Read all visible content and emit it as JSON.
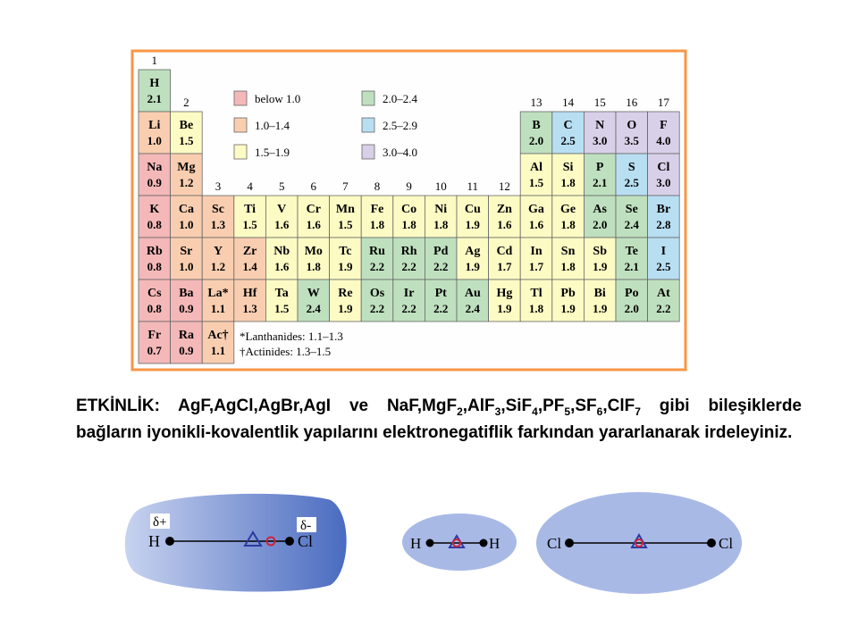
{
  "table": {
    "group_labels": [
      "1",
      "2",
      "3",
      "4",
      "5",
      "6",
      "7",
      "8",
      "9",
      "10",
      "11",
      "12",
      "13",
      "14",
      "15",
      "16",
      "17"
    ],
    "rows": [
      [
        {
          "symbol": "H",
          "value": "2.1",
          "color": "#bfe0bf"
        },
        null,
        null,
        null,
        null,
        null,
        null,
        null,
        null,
        null,
        null,
        null,
        null,
        null,
        null,
        null,
        null
      ],
      [
        {
          "symbol": "Li",
          "value": "1.0",
          "color": "#f9ceb0"
        },
        {
          "symbol": "Be",
          "value": "1.5",
          "color": "#fdfbc4"
        },
        null,
        null,
        null,
        null,
        null,
        null,
        null,
        null,
        null,
        null,
        {
          "symbol": "B",
          "value": "2.0",
          "color": "#bfe0bf"
        },
        {
          "symbol": "C",
          "value": "2.5",
          "color": "#b8def2"
        },
        {
          "symbol": "N",
          "value": "3.0",
          "color": "#d8d0e8"
        },
        {
          "symbol": "O",
          "value": "3.5",
          "color": "#d8d0e8"
        },
        {
          "symbol": "F",
          "value": "4.0",
          "color": "#d8d0e8"
        }
      ],
      [
        {
          "symbol": "Na",
          "value": "0.9",
          "color": "#f4b8b8"
        },
        {
          "symbol": "Mg",
          "value": "1.2",
          "color": "#f9ceb0"
        },
        null,
        null,
        null,
        null,
        null,
        null,
        null,
        null,
        null,
        null,
        {
          "symbol": "Al",
          "value": "1.5",
          "color": "#fdfbc4"
        },
        {
          "symbol": "Si",
          "value": "1.8",
          "color": "#fdfbc4"
        },
        {
          "symbol": "P",
          "value": "2.1",
          "color": "#bfe0bf"
        },
        {
          "symbol": "S",
          "value": "2.5",
          "color": "#b8def2"
        },
        {
          "symbol": "Cl",
          "value": "3.0",
          "color": "#d8d0e8"
        }
      ],
      [
        {
          "symbol": "K",
          "value": "0.8",
          "color": "#f4b8b8"
        },
        {
          "symbol": "Ca",
          "value": "1.0",
          "color": "#f9ceb0"
        },
        {
          "symbol": "Sc",
          "value": "1.3",
          "color": "#f9ceb0"
        },
        {
          "symbol": "Ti",
          "value": "1.5",
          "color": "#fdfbc4"
        },
        {
          "symbol": "V",
          "value": "1.6",
          "color": "#fdfbc4"
        },
        {
          "symbol": "Cr",
          "value": "1.6",
          "color": "#fdfbc4"
        },
        {
          "symbol": "Mn",
          "value": "1.5",
          "color": "#fdfbc4"
        },
        {
          "symbol": "Fe",
          "value": "1.8",
          "color": "#fdfbc4"
        },
        {
          "symbol": "Co",
          "value": "1.8",
          "color": "#fdfbc4"
        },
        {
          "symbol": "Ni",
          "value": "1.8",
          "color": "#fdfbc4"
        },
        {
          "symbol": "Cu",
          "value": "1.9",
          "color": "#fdfbc4"
        },
        {
          "symbol": "Zn",
          "value": "1.6",
          "color": "#fdfbc4"
        },
        {
          "symbol": "Ga",
          "value": "1.6",
          "color": "#fdfbc4"
        },
        {
          "symbol": "Ge",
          "value": "1.8",
          "color": "#fdfbc4"
        },
        {
          "symbol": "As",
          "value": "2.0",
          "color": "#bfe0bf"
        },
        {
          "symbol": "Se",
          "value": "2.4",
          "color": "#bfe0bf"
        },
        {
          "symbol": "Br",
          "value": "2.8",
          "color": "#b8def2"
        }
      ],
      [
        {
          "symbol": "Rb",
          "value": "0.8",
          "color": "#f4b8b8"
        },
        {
          "symbol": "Sr",
          "value": "1.0",
          "color": "#f9ceb0"
        },
        {
          "symbol": "Y",
          "value": "1.2",
          "color": "#f9ceb0"
        },
        {
          "symbol": "Zr",
          "value": "1.4",
          "color": "#f9ceb0"
        },
        {
          "symbol": "Nb",
          "value": "1.6",
          "color": "#fdfbc4"
        },
        {
          "symbol": "Mo",
          "value": "1.8",
          "color": "#fdfbc4"
        },
        {
          "symbol": "Tc",
          "value": "1.9",
          "color": "#fdfbc4"
        },
        {
          "symbol": "Ru",
          "value": "2.2",
          "color": "#bfe0bf"
        },
        {
          "symbol": "Rh",
          "value": "2.2",
          "color": "#bfe0bf"
        },
        {
          "symbol": "Pd",
          "value": "2.2",
          "color": "#bfe0bf"
        },
        {
          "symbol": "Ag",
          "value": "1.9",
          "color": "#fdfbc4"
        },
        {
          "symbol": "Cd",
          "value": "1.7",
          "color": "#fdfbc4"
        },
        {
          "symbol": "In",
          "value": "1.7",
          "color": "#fdfbc4"
        },
        {
          "symbol": "Sn",
          "value": "1.8",
          "color": "#fdfbc4"
        },
        {
          "symbol": "Sb",
          "value": "1.9",
          "color": "#fdfbc4"
        },
        {
          "symbol": "Te",
          "value": "2.1",
          "color": "#bfe0bf"
        },
        {
          "symbol": "I",
          "value": "2.5",
          "color": "#b8def2"
        }
      ],
      [
        {
          "symbol": "Cs",
          "value": "0.8",
          "color": "#f4b8b8"
        },
        {
          "symbol": "Ba",
          "value": "0.9",
          "color": "#f4b8b8"
        },
        {
          "symbol": "La*",
          "value": "1.1",
          "color": "#f9ceb0"
        },
        {
          "symbol": "Hf",
          "value": "1.3",
          "color": "#f9ceb0"
        },
        {
          "symbol": "Ta",
          "value": "1.5",
          "color": "#fdfbc4"
        },
        {
          "symbol": "W",
          "value": "2.4",
          "color": "#bfe0bf"
        },
        {
          "symbol": "Re",
          "value": "1.9",
          "color": "#fdfbc4"
        },
        {
          "symbol": "Os",
          "value": "2.2",
          "color": "#bfe0bf"
        },
        {
          "symbol": "Ir",
          "value": "2.2",
          "color": "#bfe0bf"
        },
        {
          "symbol": "Pt",
          "value": "2.2",
          "color": "#bfe0bf"
        },
        {
          "symbol": "Au",
          "value": "2.4",
          "color": "#bfe0bf"
        },
        {
          "symbol": "Hg",
          "value": "1.9",
          "color": "#fdfbc4"
        },
        {
          "symbol": "Tl",
          "value": "1.8",
          "color": "#fdfbc4"
        },
        {
          "symbol": "Pb",
          "value": "1.9",
          "color": "#fdfbc4"
        },
        {
          "symbol": "Bi",
          "value": "1.9",
          "color": "#fdfbc4"
        },
        {
          "symbol": "Po",
          "value": "2.0",
          "color": "#bfe0bf"
        },
        {
          "symbol": "At",
          "value": "2.2",
          "color": "#bfe0bf"
        }
      ],
      [
        {
          "symbol": "Fr",
          "value": "0.7",
          "color": "#f4b8b8"
        },
        {
          "symbol": "Ra",
          "value": "0.9",
          "color": "#f4b8b8"
        },
        {
          "symbol": "Ac†",
          "value": "1.1",
          "color": "#f9ceb0"
        },
        null,
        null,
        null,
        null,
        null,
        null,
        null,
        null,
        null,
        null,
        null,
        null,
        null,
        null
      ]
    ],
    "legend": [
      {
        "label": "below 1.0",
        "color": "#f4b8b8"
      },
      {
        "label": "1.0–1.4",
        "color": "#f9ceb0"
      },
      {
        "label": "1.5–1.9",
        "color": "#fdfbc4"
      },
      {
        "label": "2.0–2.4",
        "color": "#bfe0bf"
      },
      {
        "label": "2.5–2.9",
        "color": "#b8def2"
      },
      {
        "label": "3.0–4.0",
        "color": "#d8d0e8"
      }
    ],
    "footnotes": [
      "*Lanthanides: 1.1–1.3",
      "†Actinides: 1.3–1.5"
    ]
  },
  "activity": {
    "parts": [
      "ETKİNLİK: AgF,AgCl,AgBr,AgI ve NaF,MgF",
      "2",
      ",AlF",
      "3",
      ",SiF",
      "4",
      ",PF",
      "5",
      ",SF",
      "6",
      ",ClF",
      "7",
      " gibi bileşiklerde bağların iyonikli-kovalentlik yapılarını elektronegatiflik farkından yararlanarak irdeleyiniz."
    ]
  },
  "diagrams": [
    {
      "labels": [
        "δ+",
        "H",
        "Cl",
        "δ-"
      ]
    },
    {
      "labels": [
        "H",
        "H"
      ]
    },
    {
      "labels": [
        "Cl",
        "Cl"
      ]
    }
  ]
}
